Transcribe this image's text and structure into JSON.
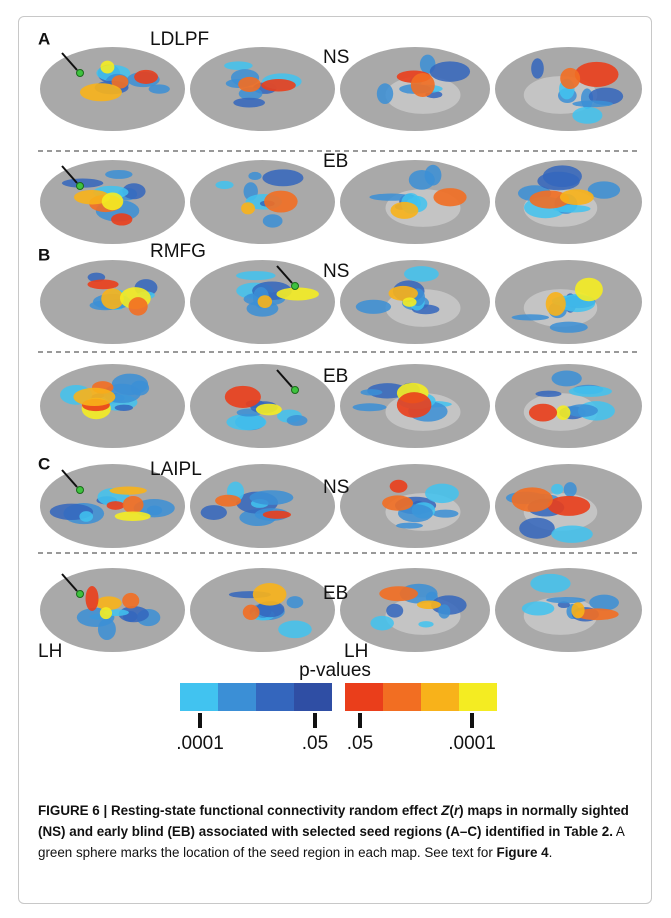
{
  "panels": [
    {
      "label": "A",
      "seed": "LDLPF",
      "rows": [
        "NS",
        "EB"
      ]
    },
    {
      "label": "B",
      "seed": "RMFG",
      "rows": [
        "NS",
        "EB"
      ]
    },
    {
      "label": "C",
      "seed": "LAIPL",
      "rows": [
        "NS",
        "EB"
      ]
    }
  ],
  "hemisphere_labels": [
    "LH",
    "LH"
  ],
  "colorbar": {
    "title": "p-values",
    "ticks": [
      ".0001",
      ".05",
      ".05",
      ".0001"
    ]
  },
  "caption": {
    "runs": [
      "FIGURE 6 | Resting-state functional connectivity random effect ",
      "Z",
      "(",
      "r",
      ") maps in normally sighted (NS) and early blind (EB) associated with selected seed regions (A–C) identified in Table 2.",
      " A green sphere marks the location of the seed region in each map. See text for ",
      "Figure 4",
      "."
    ]
  }
}
